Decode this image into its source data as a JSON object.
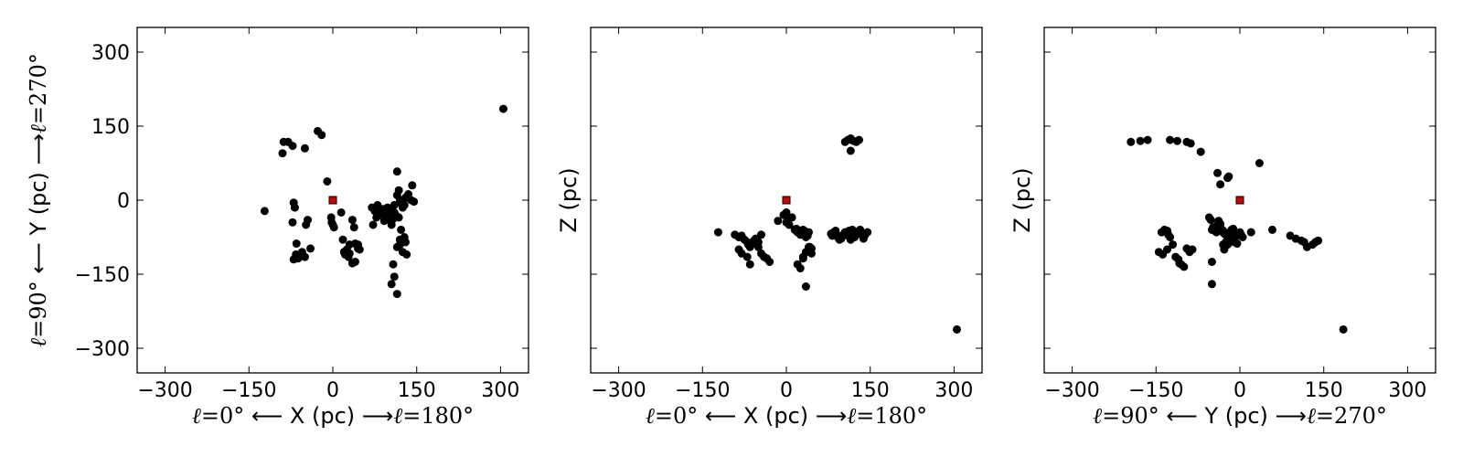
{
  "chart_data": [
    {
      "type": "scatter",
      "xlim": [
        -350,
        350
      ],
      "ylim": [
        -350,
        350
      ],
      "xticks": [
        -300,
        -150,
        0,
        150,
        300
      ],
      "yticks": [
        -300,
        -150,
        0,
        150,
        300
      ],
      "show_x_tick_labels": true,
      "show_y_tick_labels": true,
      "xlabel": {
        "prefix": "ℓ=0°",
        "main": "X (pc)",
        "suffix": "ℓ=180°"
      },
      "ylabel": {
        "prefix": "ℓ=90°",
        "main": "Y (pc)",
        "suffix": "ℓ=270°"
      },
      "grid": false,
      "series": [
        {
          "marker": "circle",
          "color": "#000000",
          "x": [
            -88,
            -80,
            -72,
            -90,
            -27,
            -20,
            -50,
            -10,
            -122,
            -70,
            -68,
            -72,
            -66,
            -45,
            -48,
            -65,
            -55,
            -62,
            -40,
            -70,
            -50,
            -3,
            -2,
            0,
            2,
            15,
            18,
            30,
            35,
            38,
            40,
            45,
            48,
            40,
            25,
            22,
            28,
            35,
            45,
            30,
            20,
            70,
            75,
            80,
            82,
            78,
            72,
            85,
            88,
            90,
            92,
            95,
            98,
            100,
            102,
            105,
            108,
            110,
            112,
            115,
            118,
            120,
            125,
            128,
            130,
            135,
            140,
            145,
            142,
            115,
            120,
            125,
            118,
            122,
            128,
            130,
            120,
            115,
            108,
            110,
            105,
            115,
            125,
            132,
            120,
            105,
            110,
            305
          ],
          "y": [
            118,
            118,
            110,
            95,
            140,
            132,
            105,
            38,
            -22,
            -5,
            -15,
            -45,
            -110,
            -40,
            -50,
            -88,
            -105,
            -118,
            -98,
            -120,
            -115,
            -35,
            -45,
            -50,
            -55,
            -25,
            -80,
            -90,
            -40,
            -55,
            -88,
            -90,
            -100,
            -125,
            -100,
            -110,
            -115,
            -128,
            -98,
            -108,
            -105,
            -15,
            -22,
            -10,
            -25,
            -35,
            -50,
            -25,
            -30,
            -18,
            -42,
            -30,
            -15,
            -20,
            -40,
            -50,
            -38,
            -25,
            -30,
            10,
            20,
            0,
            -5,
            -10,
            5,
            12,
            0,
            -3,
            30,
            58,
            -5,
            -15,
            -35,
            -60,
            -75,
            -85,
            -80,
            -95,
            -130,
            -155,
            -170,
            -190,
            -105,
            -110,
            -90,
            -30,
            -10,
            185
          ]
        },
        {
          "marker": "square",
          "color": "#cc0000",
          "x": [
            0
          ],
          "y": [
            0
          ]
        }
      ]
    },
    {
      "type": "scatter",
      "xlim": [
        -350,
        350
      ],
      "ylim": [
        -350,
        350
      ],
      "xticks": [
        -300,
        -150,
        0,
        150,
        300
      ],
      "yticks": [
        -300,
        -150,
        0,
        150,
        300
      ],
      "show_x_tick_labels": true,
      "show_y_tick_labels": false,
      "xlabel": {
        "prefix": "ℓ=0°",
        "main": "X (pc)",
        "suffix": "ℓ=180°"
      },
      "ylabel": {
        "prefix": "",
        "main": "Z (pc)",
        "suffix": ""
      },
      "grid": false,
      "series": [
        {
          "marker": "circle",
          "color": "#000000",
          "x": [
            -122,
            -92,
            -85,
            -80,
            -75,
            -70,
            -68,
            -65,
            -60,
            -58,
            -55,
            -50,
            -50,
            -45,
            -40,
            -35,
            -30,
            -85,
            -80,
            -70,
            -65,
            -45,
            -15,
            -5,
            0,
            0,
            5,
            5,
            10,
            15,
            18,
            20,
            25,
            28,
            30,
            32,
            35,
            38,
            40,
            42,
            45,
            20,
            25,
            30,
            35,
            40,
            45,
            30,
            40,
            35,
            80,
            82,
            85,
            88,
            90,
            92,
            95,
            98,
            100,
            102,
            105,
            108,
            110,
            112,
            115,
            118,
            120,
            122,
            125,
            128,
            130,
            132,
            135,
            138,
            140,
            142,
            145,
            105,
            110,
            115,
            120,
            125,
            130,
            115,
            305
          ],
          "y": [
            -65,
            -70,
            -75,
            -72,
            -80,
            -85,
            -90,
            -95,
            -88,
            -82,
            -78,
            -85,
            -95,
            -70,
            -115,
            -118,
            -125,
            -100,
            -108,
            -115,
            -130,
            -108,
            -42,
            -30,
            -25,
            -45,
            -50,
            -38,
            -35,
            -60,
            -58,
            -65,
            -70,
            -68,
            -60,
            -62,
            -75,
            -72,
            -65,
            -95,
            -108,
            -130,
            -138,
            -115,
            -105,
            -100,
            -98,
            -118,
            -95,
            -175,
            -68,
            -72,
            -65,
            -62,
            -70,
            -75,
            -80,
            -78,
            -72,
            -70,
            -65,
            -68,
            -72,
            -62,
            -80,
            -60,
            -68,
            -75,
            -70,
            -65,
            -62,
            -60,
            -70,
            -78,
            -72,
            -68,
            -65,
            118,
            122,
            125,
            120,
            118,
            122,
            100,
            -262
          ]
        },
        {
          "marker": "square",
          "color": "#cc0000",
          "x": [
            0
          ],
          "y": [
            0
          ]
        }
      ]
    },
    {
      "type": "scatter",
      "xlim": [
        -350,
        350
      ],
      "ylim": [
        -350,
        350
      ],
      "xticks": [
        -300,
        -150,
        0,
        150,
        300
      ],
      "yticks": [
        -300,
        -150,
        0,
        150,
        300
      ],
      "show_x_tick_labels": true,
      "show_y_tick_labels": false,
      "xlabel": {
        "prefix": "ℓ=90°",
        "main": "Y (pc)",
        "suffix": "ℓ=270°"
      },
      "ylabel": {
        "prefix": "",
        "main": "Z (pc)",
        "suffix": ""
      },
      "grid": false,
      "series": [
        {
          "marker": "circle",
          "color": "#000000",
          "x": [
            -195,
            -178,
            -165,
            -125,
            -112,
            -95,
            -88,
            -70,
            -40,
            -35,
            -22,
            -20,
            -18,
            -25,
            -22,
            -140,
            -135,
            -130,
            -128,
            -125,
            -120,
            -145,
            -138,
            -130,
            -115,
            -110,
            -108,
            -105,
            -100,
            -95,
            -90,
            -85,
            -55,
            -52,
            -48,
            -45,
            -42,
            -40,
            -38,
            -35,
            -32,
            -30,
            -28,
            -25,
            -22,
            -20,
            -18,
            -15,
            -12,
            -10,
            -8,
            -5,
            -2,
            0,
            2,
            5,
            -50,
            -45,
            -40,
            -35,
            -30,
            -25,
            -20,
            -15,
            -10,
            -5,
            -30,
            -28,
            -25,
            -50,
            -50,
            20,
            35,
            58,
            90,
            100,
            110,
            115,
            120,
            130,
            135,
            140,
            185
          ],
          "y": [
            118,
            120,
            122,
            122,
            120,
            118,
            115,
            98,
            55,
            32,
            45,
            48,
            -78,
            -85,
            -90,
            -65,
            -60,
            -62,
            -70,
            -75,
            -90,
            -105,
            -110,
            -100,
            -115,
            -120,
            -128,
            -130,
            -135,
            -98,
            -105,
            -100,
            -35,
            -40,
            -55,
            -60,
            -65,
            -50,
            -42,
            -48,
            -60,
            -62,
            -68,
            -70,
            -75,
            -72,
            -65,
            -60,
            -58,
            -70,
            -75,
            -72,
            -68,
            -65,
            -70,
            -75,
            -60,
            -62,
            -58,
            -55,
            -65,
            -70,
            -78,
            -80,
            -85,
            -88,
            -90,
            -100,
            -85,
            -125,
            -170,
            -65,
            75,
            -60,
            -72,
            -78,
            -82,
            -85,
            -95,
            -90,
            -85,
            -82,
            -262
          ]
        },
        {
          "marker": "square",
          "color": "#cc0000",
          "x": [
            0
          ],
          "y": [
            0
          ]
        }
      ]
    }
  ]
}
